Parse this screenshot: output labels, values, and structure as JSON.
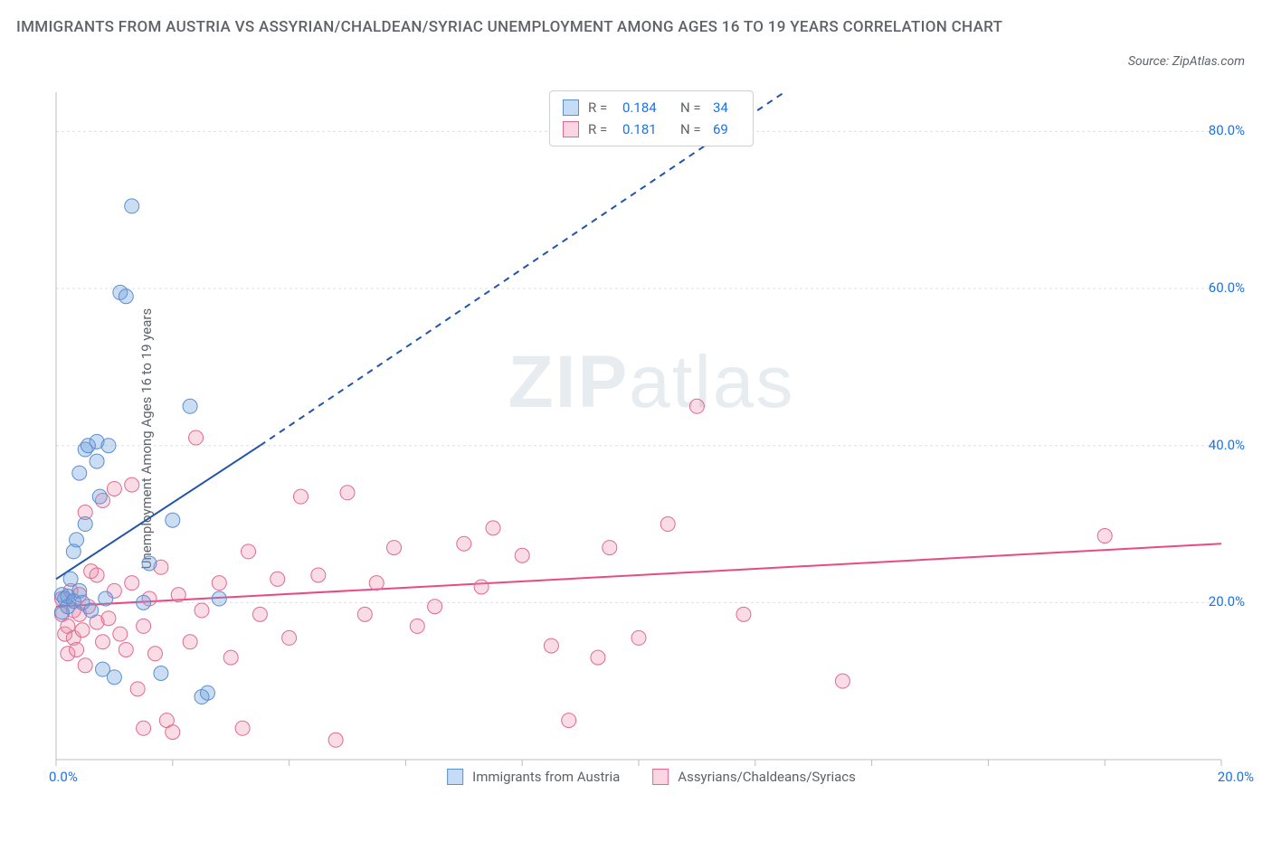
{
  "title": "IMMIGRANTS FROM AUSTRIA VS ASSYRIAN/CHALDEAN/SYRIAC UNEMPLOYMENT AMONG AGES 16 TO 19 YEARS CORRELATION CHART",
  "source": "Source: ZipAtlas.com",
  "watermark": "ZIPatlas",
  "y_axis_label": "Unemployment Among Ages 16 to 19 years",
  "chart": {
    "type": "scatter",
    "background_color": "#ffffff",
    "grid_color": "#e0e0e0",
    "axis_color": "#bdbdbd",
    "tick_label_color": "#1a73e8",
    "xlim": [
      0,
      20
    ],
    "ylim": [
      0,
      85
    ],
    "x_ticks": [
      0,
      2,
      4,
      6,
      8,
      10,
      12,
      14,
      16,
      18,
      20
    ],
    "x_tick_labels": [
      "0.0%",
      "",
      "",
      "",
      "",
      "",
      "",
      "",
      "",
      "",
      "20.0%"
    ],
    "y_ticks": [
      20,
      40,
      60,
      80
    ],
    "y_tick_labels": [
      "20.0%",
      "40.0%",
      "60.0%",
      "80.0%"
    ],
    "series": [
      {
        "name": "Immigrants from Austria",
        "color_fill": "rgba(106, 158, 222, 0.35)",
        "color_stroke": "#5b8fd0",
        "swatch_fill": "#c6dbf5",
        "swatch_stroke": "#5b8fd0",
        "marker_radius": 8,
        "stats": {
          "R": "0.184",
          "N": "34"
        },
        "trend": {
          "solid": [
            [
              0,
              23
            ],
            [
              3.5,
              40
            ]
          ],
          "dashed": [
            [
              3.5,
              40
            ],
            [
              12.5,
              85
            ]
          ],
          "color": "#2255aa",
          "width": 2
        },
        "points": [
          [
            0.1,
            18.8
          ],
          [
            0.1,
            21.0
          ],
          [
            0.15,
            20.5
          ],
          [
            0.2,
            19.5
          ],
          [
            0.2,
            20.8
          ],
          [
            0.25,
            23.0
          ],
          [
            0.3,
            20.2
          ],
          [
            0.3,
            26.5
          ],
          [
            0.35,
            28.0
          ],
          [
            0.4,
            21.5
          ],
          [
            0.4,
            36.5
          ],
          [
            0.45,
            20.0
          ],
          [
            0.5,
            30.0
          ],
          [
            0.5,
            39.5
          ],
          [
            0.55,
            40.0
          ],
          [
            0.6,
            19.0
          ],
          [
            0.7,
            40.5
          ],
          [
            0.7,
            38.0
          ],
          [
            0.75,
            33.5
          ],
          [
            0.8,
            11.5
          ],
          [
            0.85,
            20.5
          ],
          [
            0.9,
            40.0
          ],
          [
            1.0,
            10.5
          ],
          [
            1.1,
            59.5
          ],
          [
            1.2,
            59.0
          ],
          [
            1.3,
            70.5
          ],
          [
            1.5,
            20.0
          ],
          [
            1.6,
            25.0
          ],
          [
            1.8,
            11.0
          ],
          [
            2.0,
            30.5
          ],
          [
            2.3,
            45.0
          ],
          [
            2.5,
            8.0
          ],
          [
            2.6,
            8.5
          ],
          [
            2.8,
            20.5
          ]
        ]
      },
      {
        "name": "Assyrians/Chaldeans/Syriacs",
        "color_fill": "rgba(238, 140, 170, 0.30)",
        "color_stroke": "#e06a94",
        "swatch_fill": "#fbd6e2",
        "swatch_stroke": "#e06a94",
        "marker_radius": 8,
        "stats": {
          "R": "0.181",
          "N": "69"
        },
        "trend": {
          "solid": [
            [
              0,
              19.5
            ],
            [
              20,
              27.5
            ]
          ],
          "dashed": null,
          "color": "#e84b84",
          "width": 2
        },
        "points": [
          [
            0.1,
            18.5
          ],
          [
            0.1,
            20.5
          ],
          [
            0.15,
            16.0
          ],
          [
            0.2,
            13.5
          ],
          [
            0.2,
            17.0
          ],
          [
            0.25,
            21.5
          ],
          [
            0.3,
            15.5
          ],
          [
            0.3,
            19.0
          ],
          [
            0.35,
            14.0
          ],
          [
            0.4,
            18.5
          ],
          [
            0.4,
            21.0
          ],
          [
            0.45,
            16.5
          ],
          [
            0.5,
            12.0
          ],
          [
            0.5,
            31.5
          ],
          [
            0.55,
            19.5
          ],
          [
            0.6,
            24.0
          ],
          [
            0.7,
            17.5
          ],
          [
            0.7,
            23.5
          ],
          [
            0.8,
            15.0
          ],
          [
            0.8,
            33.0
          ],
          [
            0.9,
            18.0
          ],
          [
            1.0,
            21.5
          ],
          [
            1.0,
            34.5
          ],
          [
            1.1,
            16.0
          ],
          [
            1.2,
            14.0
          ],
          [
            1.3,
            22.5
          ],
          [
            1.3,
            35.0
          ],
          [
            1.4,
            9.0
          ],
          [
            1.5,
            4.0
          ],
          [
            1.5,
            17.0
          ],
          [
            1.6,
            20.5
          ],
          [
            1.7,
            13.5
          ],
          [
            1.8,
            24.5
          ],
          [
            1.9,
            5.0
          ],
          [
            2.0,
            3.5
          ],
          [
            2.1,
            21.0
          ],
          [
            2.3,
            15.0
          ],
          [
            2.4,
            41.0
          ],
          [
            2.5,
            19.0
          ],
          [
            2.8,
            22.5
          ],
          [
            3.0,
            13.0
          ],
          [
            3.2,
            4.0
          ],
          [
            3.3,
            26.5
          ],
          [
            3.5,
            18.5
          ],
          [
            3.8,
            23.0
          ],
          [
            4.0,
            15.5
          ],
          [
            4.2,
            33.5
          ],
          [
            4.5,
            23.5
          ],
          [
            4.8,
            2.5
          ],
          [
            5.0,
            34.0
          ],
          [
            5.3,
            18.5
          ],
          [
            5.5,
            22.5
          ],
          [
            5.8,
            27.0
          ],
          [
            6.2,
            17.0
          ],
          [
            6.5,
            19.5
          ],
          [
            7.0,
            27.5
          ],
          [
            7.3,
            22.0
          ],
          [
            7.5,
            29.5
          ],
          [
            8.0,
            26.0
          ],
          [
            8.5,
            14.5
          ],
          [
            8.8,
            5.0
          ],
          [
            9.3,
            13.0
          ],
          [
            9.5,
            27.0
          ],
          [
            10.0,
            15.5
          ],
          [
            10.5,
            30.0
          ],
          [
            11.0,
            45.0
          ],
          [
            11.8,
            18.5
          ],
          [
            13.5,
            10.0
          ],
          [
            18.0,
            28.5
          ]
        ]
      }
    ]
  },
  "legend_bottom": [
    {
      "label": "Immigrants from Austria",
      "series": 0
    },
    {
      "label": "Assyrians/Chaldeans/Syriacs",
      "series": 1
    }
  ]
}
